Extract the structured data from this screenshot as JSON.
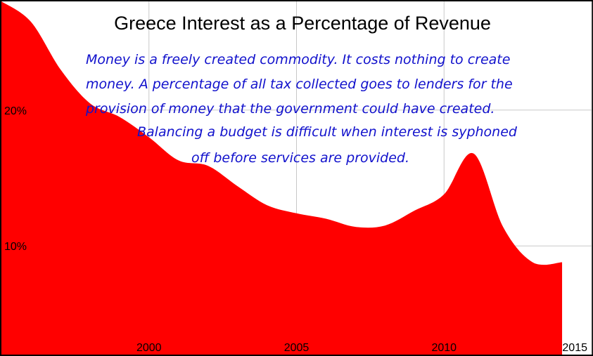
{
  "chart_data": {
    "type": "area",
    "title": "Greece Interest as a Percentage of Revenue",
    "xlabel": "",
    "ylabel": "",
    "x": [
      1995,
      1996,
      1997,
      1998,
      1999,
      2000,
      2001,
      2002,
      2003,
      2004,
      2005,
      2006,
      2007,
      2008,
      2009,
      2010,
      2011,
      2012,
      2013,
      2014
    ],
    "values": [
      28.0,
      26.5,
      23.0,
      20.5,
      19.5,
      18.0,
      16.3,
      15.9,
      14.4,
      13.0,
      12.4,
      12.0,
      11.4,
      11.5,
      12.6,
      13.8,
      16.8,
      11.4,
      8.8,
      8.8
    ],
    "xlim": [
      1995,
      2015
    ],
    "ylim": [
      2,
      28
    ],
    "x_ticks": [
      "2000",
      "2005",
      "2010",
      "2015"
    ],
    "y_ticks": [
      "20%",
      "10%"
    ],
    "grid": true,
    "fill_color": "#ff0000",
    "grid_color": "#c8c8c8",
    "annotations": [
      "Money is a freely created commodity. It costs nothing to create",
      "money. A percentage of all tax collected goes to lenders for the",
      "provision of money that the government could have created.",
      "Balancing a budget is difficult when interest is syphoned",
      "off before services are provided."
    ]
  }
}
